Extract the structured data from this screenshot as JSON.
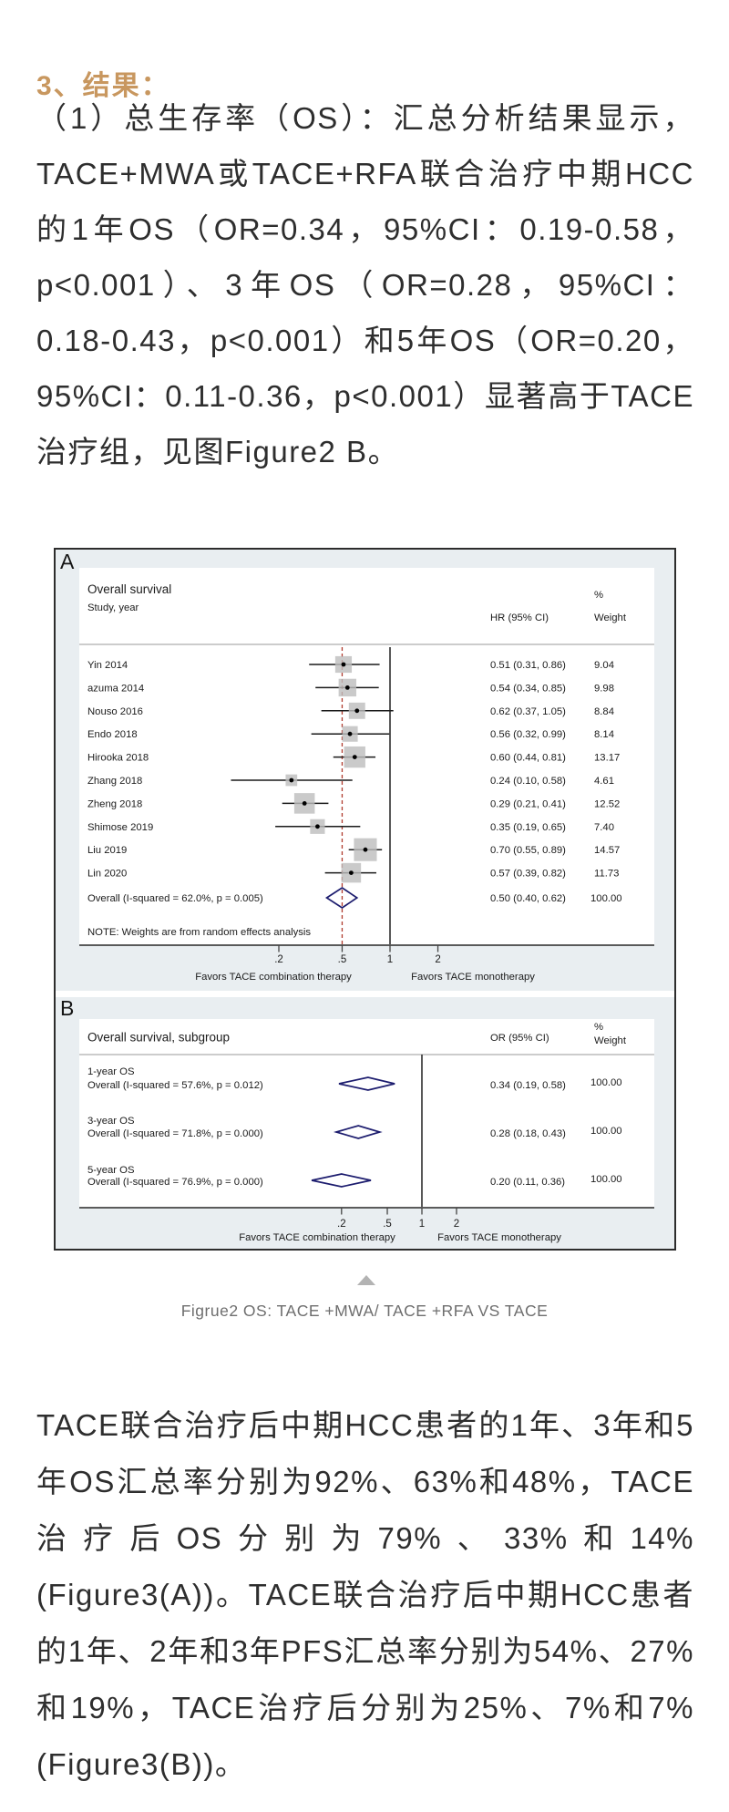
{
  "page": {
    "heading": "3、结果：",
    "paragraph1": "（1）总生存率（OS）：汇总分析结果显示，TACE+MWA或TACE+RFA联合治疗中期HCC的1年OS（OR=0.34，95%CI：0.19-0.58，p<0.001）、3年OS（OR=0.28，95%CI：0.18-0.43，p<0.001）和5年OS（OR=0.20，95%CI：0.11-0.36，p<0.001）显著高于TACE治疗组，见图Figure2 B。",
    "caption": "Figrue2 OS: TACE +MWA/ TACE +RFA VS TACE",
    "paragraph2": "TACE联合治疗后中期HCC患者的1年、3年和5年OS汇总率分别为92%、63%和48%，TACE治疗后OS分别为79%、33%和14%(Figure3(A))。TACE联合治疗后中期HCC患者的1年、2年和3年PFS汇总率分别为54%、27%和19%，TACE治疗后分别为25%、7%和7%(Figure3(B))。"
  },
  "colors": {
    "accent_heading": "#c8975f",
    "body_text": "#2e2e2e",
    "figure_bg": "#e9eef1",
    "frame": "#2d2d2d",
    "red_ref_line": "#b03a2e",
    "diamond": "#1c1c6e",
    "marker_box": "#bdbdbd",
    "figure_text": "#1b1b1b",
    "caption": "#6e6e6e",
    "triangle": "#b3b3b3"
  },
  "chart_data": [
    {
      "type": "forest",
      "panel_label": "A",
      "title": "Overall survival",
      "col_study": "Study, year",
      "col_effect": "HR (95% CI)",
      "col_weight_top": "%",
      "col_weight": "Weight",
      "axis_ticks": [
        0.2,
        0.5,
        1,
        2
      ],
      "axis_tick_labels": [
        ".2",
        ".5",
        "1",
        "2"
      ],
      "ref_line_solid": 1,
      "ref_line_dashed": 0.5,
      "xlabel_left": "Favors TACE combination therapy",
      "xlabel_right": "Favors TACE monotherapy",
      "note": "NOTE: Weights are from random effects analysis",
      "studies": [
        {
          "label": "Yin 2014",
          "est": 0.51,
          "lo": 0.31,
          "hi": 0.86,
          "text": "0.51 (0.31, 0.86)",
          "weight": "9.04"
        },
        {
          "label": "azuma 2014",
          "est": 0.54,
          "lo": 0.34,
          "hi": 0.85,
          "text": "0.54 (0.34, 0.85)",
          "weight": "9.98"
        },
        {
          "label": "Nouso 2016",
          "est": 0.62,
          "lo": 0.37,
          "hi": 1.05,
          "text": "0.62 (0.37, 1.05)",
          "weight": "8.84"
        },
        {
          "label": "Endo 2018",
          "est": 0.56,
          "lo": 0.32,
          "hi": 0.99,
          "text": "0.56 (0.32, 0.99)",
          "weight": "8.14"
        },
        {
          "label": "Hirooka 2018",
          "est": 0.6,
          "lo": 0.44,
          "hi": 0.81,
          "text": "0.60 (0.44, 0.81)",
          "weight": "13.17"
        },
        {
          "label": "Zhang 2018",
          "est": 0.24,
          "lo": 0.1,
          "hi": 0.58,
          "text": "0.24 (0.10, 0.58)",
          "weight": "4.61"
        },
        {
          "label": "Zheng 2018",
          "est": 0.29,
          "lo": 0.21,
          "hi": 0.41,
          "text": "0.29 (0.21, 0.41)",
          "weight": "12.52"
        },
        {
          "label": "Shimose 2019",
          "est": 0.35,
          "lo": 0.19,
          "hi": 0.65,
          "text": "0.35 (0.19, 0.65)",
          "weight": "7.40"
        },
        {
          "label": "Liu 2019",
          "est": 0.7,
          "lo": 0.55,
          "hi": 0.89,
          "text": "0.70 (0.55, 0.89)",
          "weight": "14.57"
        },
        {
          "label": "Lin 2020",
          "est": 0.57,
          "lo": 0.39,
          "hi": 0.82,
          "text": "0.57 (0.39, 0.82)",
          "weight": "11.73"
        }
      ],
      "overall": {
        "label": "Overall  (I-squared = 62.0%, p = 0.005)",
        "est": 0.5,
        "lo": 0.4,
        "hi": 0.62,
        "text": "0.50 (0.40, 0.62)",
        "weight": "100.00"
      }
    },
    {
      "type": "forest",
      "panel_label": "B",
      "title": "Overall survival, subgroup",
      "col_effect": "OR (95% CI)",
      "col_weight_top": "%",
      "col_weight": "Weight",
      "axis_ticks": [
        0.2,
        0.5,
        1,
        2
      ],
      "axis_tick_labels": [
        ".2",
        ".5",
        "1",
        "2"
      ],
      "ref_line_solid": 1,
      "xlabel_left": "Favors TACE combination therapy",
      "xlabel_right": "Favors TACE monotherapy",
      "groups": [
        {
          "name": "1-year OS",
          "label": "Overall  (I-squared = 57.6%, p = 0.012)",
          "est": 0.34,
          "lo": 0.19,
          "hi": 0.58,
          "text": "0.34 (0.19, 0.58)",
          "weight": "100.00"
        },
        {
          "name": "3-year OS",
          "label": "Overall  (I-squared = 71.8%, p = 0.000)",
          "est": 0.28,
          "lo": 0.18,
          "hi": 0.43,
          "text": "0.28 (0.18, 0.43)",
          "weight": "100.00"
        },
        {
          "name": "5-year OS",
          "label": "Overall  (I-squared = 76.9%, p = 0.000)",
          "est": 0.2,
          "lo": 0.11,
          "hi": 0.36,
          "text": "0.20 (0.11, 0.36)",
          "weight": "100.00"
        }
      ]
    }
  ]
}
